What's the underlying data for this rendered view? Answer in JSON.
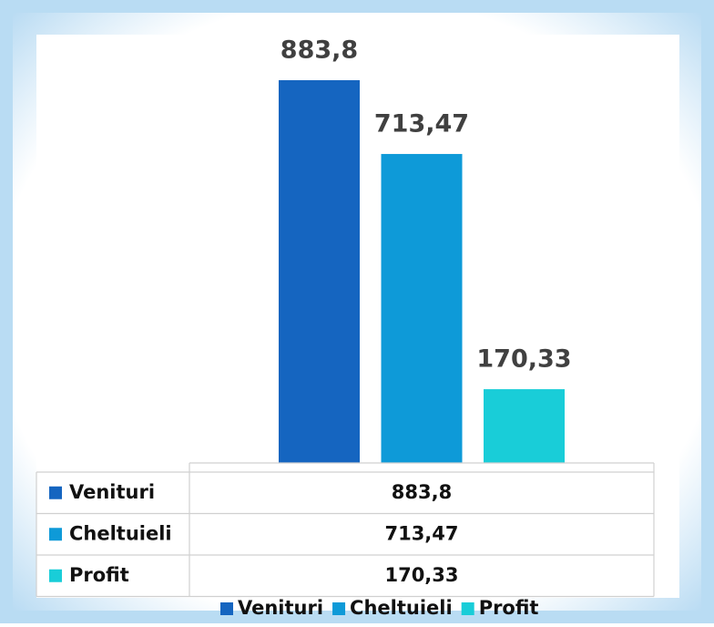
{
  "chart_data": {
    "type": "bar",
    "categories": [
      null
    ],
    "series": [
      {
        "name": "Venituri",
        "color": "#1565c0",
        "values": [
          883.8
        ],
        "value_labels": [
          "883,8"
        ]
      },
      {
        "name": "Cheltuieli",
        "color": "#0e9ad8",
        "values": [
          713.47
        ],
        "value_labels": [
          "713,47"
        ]
      },
      {
        "name": "Profit",
        "color": "#19cdd8",
        "values": [
          170.33
        ],
        "value_labels": [
          "170,33"
        ]
      }
    ],
    "data_table": true,
    "legend": "bottom"
  }
}
